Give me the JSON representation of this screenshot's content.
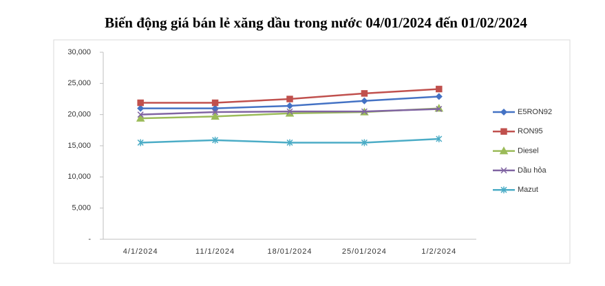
{
  "chart_data": {
    "type": "line",
    "title": "Biến động giá bán lẻ xăng dầu trong nước 04/01/2024 đến 01/02/2024",
    "categories": [
      "4/1/2024",
      "11/1/2024",
      "18/01/2024",
      "25/01/2024",
      "1/2/2024"
    ],
    "series": [
      {
        "name": "E5RON92",
        "color": "#4472c4",
        "marker": "diamond",
        "values": [
          21000,
          21000,
          21400,
          22200,
          22900
        ]
      },
      {
        "name": "RON95",
        "color": "#c0504d",
        "marker": "square",
        "values": [
          21900,
          21900,
          22500,
          23400,
          24100
        ]
      },
      {
        "name": "Diesel",
        "color": "#9bbb59",
        "marker": "triangle",
        "values": [
          19400,
          19700,
          20200,
          20400,
          21000
        ]
      },
      {
        "name": "Dầu hỏa",
        "color": "#8064a2",
        "marker": "x",
        "values": [
          20000,
          20400,
          20500,
          20500,
          20900
        ]
      },
      {
        "name": "Mazut",
        "color": "#4bacc6",
        "marker": "asterisk",
        "values": [
          15500,
          15900,
          15500,
          15500,
          16100
        ]
      }
    ],
    "ylim": [
      0,
      30000
    ],
    "yticks": [
      {
        "value": 0,
        "label": "-"
      },
      {
        "value": 5000,
        "label": "5,000"
      },
      {
        "value": 10000,
        "label": "10,000"
      },
      {
        "value": 15000,
        "label": "15,000"
      },
      {
        "value": 20000,
        "label": "20,000"
      },
      {
        "value": 25000,
        "label": "25,000"
      },
      {
        "value": 30000,
        "label": "30,000"
      }
    ],
    "legend": "right"
  }
}
